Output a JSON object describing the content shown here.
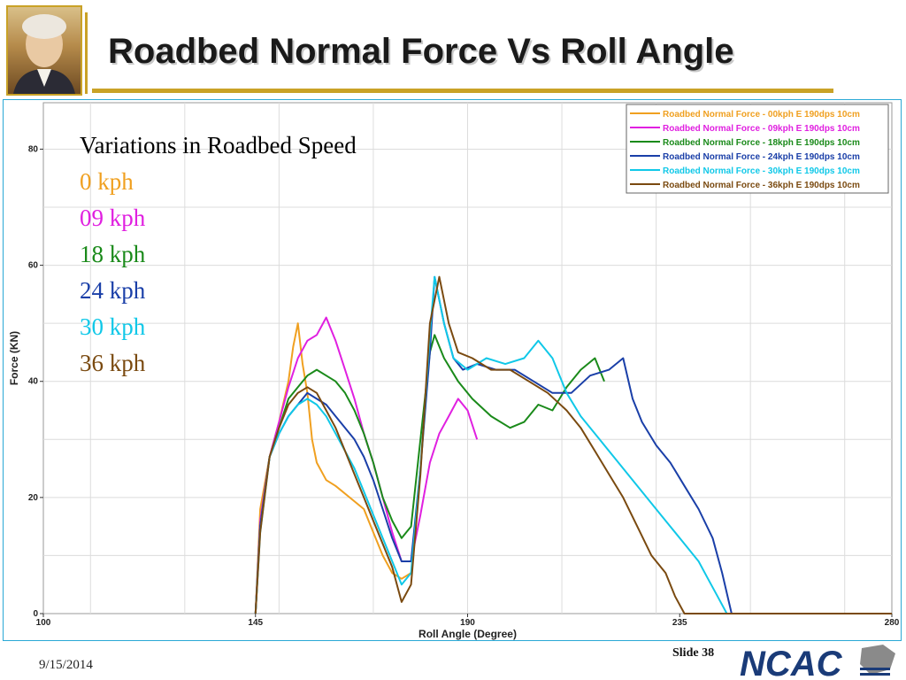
{
  "slide": {
    "title": "Roadbed Normal Force Vs Roll Angle",
    "footer_date": "9/15/2014",
    "slide_number": "Slide 38",
    "logo_text": "NCAC"
  },
  "text_block": {
    "heading": "Variations in Roadbed Speed",
    "items": [
      {
        "label": "0 kph",
        "color": "#f0a020"
      },
      {
        "label": "09 kph",
        "color": "#e020e0"
      },
      {
        "label": "18 kph",
        "color": "#1a8a1a"
      },
      {
        "label": "24 kph",
        "color": "#1a3fa8"
      },
      {
        "label": "30 kph",
        "color": "#10c8e8"
      },
      {
        "label": "36 kph",
        "color": "#7a4a10"
      }
    ]
  },
  "chart_data": {
    "type": "line",
    "title": "",
    "xlabel": "Roll Angle (Degree)",
    "ylabel": "Force (KN)",
    "xlim": [
      100,
      280
    ],
    "ylim": [
      0,
      88
    ],
    "xticks": [
      100,
      145,
      190,
      235,
      280
    ],
    "yticks": [
      0,
      20,
      40,
      60,
      80
    ],
    "grid": true,
    "legend_position": "top-right",
    "series": [
      {
        "name": "Roadbed Normal Force - 00kph E 190dps 10cm",
        "color": "#f0a020",
        "points": [
          [
            145,
            0
          ],
          [
            146,
            18
          ],
          [
            148,
            27
          ],
          [
            150,
            33
          ],
          [
            152,
            40
          ],
          [
            153,
            46
          ],
          [
            154,
            50
          ],
          [
            155,
            43
          ],
          [
            156,
            38
          ],
          [
            157,
            30
          ],
          [
            158,
            26
          ],
          [
            160,
            23
          ],
          [
            162,
            22
          ],
          [
            165,
            20
          ],
          [
            168,
            18
          ],
          [
            170,
            14
          ],
          [
            172,
            10
          ],
          [
            174,
            7
          ],
          [
            176,
            6
          ],
          [
            178,
            7
          ]
        ]
      },
      {
        "name": "Roadbed Normal Force - 09kph E 190dps 10cm",
        "color": "#e020e0",
        "points": [
          [
            145,
            0
          ],
          [
            146,
            16
          ],
          [
            148,
            27
          ],
          [
            150,
            33
          ],
          [
            152,
            39
          ],
          [
            154,
            44
          ],
          [
            156,
            47
          ],
          [
            158,
            48
          ],
          [
            160,
            51
          ],
          [
            162,
            47
          ],
          [
            164,
            42
          ],
          [
            166,
            37
          ],
          [
            168,
            31
          ],
          [
            170,
            26
          ],
          [
            172,
            20
          ],
          [
            174,
            14
          ],
          [
            176,
            9
          ],
          [
            178,
            9
          ],
          [
            180,
            17
          ],
          [
            182,
            26
          ],
          [
            184,
            31
          ],
          [
            186,
            34
          ],
          [
            188,
            37
          ],
          [
            190,
            35
          ],
          [
            192,
            30
          ]
        ]
      },
      {
        "name": "Roadbed Normal Force - 18kph E 190dps 10cm",
        "color": "#1a8a1a",
        "points": [
          [
            145,
            0
          ],
          [
            146,
            15
          ],
          [
            148,
            27
          ],
          [
            150,
            32
          ],
          [
            152,
            37
          ],
          [
            154,
            39
          ],
          [
            156,
            41
          ],
          [
            158,
            42
          ],
          [
            160,
            41
          ],
          [
            162,
            40
          ],
          [
            164,
            38
          ],
          [
            166,
            35
          ],
          [
            168,
            31
          ],
          [
            170,
            26
          ],
          [
            172,
            20
          ],
          [
            174,
            16
          ],
          [
            176,
            13
          ],
          [
            178,
            15
          ],
          [
            180,
            30
          ],
          [
            182,
            45
          ],
          [
            183,
            48
          ],
          [
            185,
            44
          ],
          [
            188,
            40
          ],
          [
            191,
            37
          ],
          [
            195,
            34
          ],
          [
            199,
            32
          ],
          [
            202,
            33
          ],
          [
            205,
            36
          ],
          [
            208,
            35
          ],
          [
            211,
            39
          ],
          [
            214,
            42
          ],
          [
            217,
            44
          ],
          [
            219,
            40
          ]
        ]
      },
      {
        "name": "Roadbed Normal Force - 24kph E 190dps 10cm",
        "color": "#1a3fa8",
        "points": [
          [
            145,
            0
          ],
          [
            146,
            15
          ],
          [
            148,
            27
          ],
          [
            150,
            31
          ],
          [
            152,
            34
          ],
          [
            154,
            36
          ],
          [
            156,
            38
          ],
          [
            158,
            37
          ],
          [
            160,
            36
          ],
          [
            162,
            34
          ],
          [
            164,
            32
          ],
          [
            166,
            30
          ],
          [
            168,
            27
          ],
          [
            170,
            23
          ],
          [
            172,
            18
          ],
          [
            174,
            13
          ],
          [
            176,
            9
          ],
          [
            178,
            9
          ],
          [
            180,
            25
          ],
          [
            182,
            45
          ],
          [
            183,
            58
          ],
          [
            185,
            50
          ],
          [
            187,
            44
          ],
          [
            189,
            42
          ],
          [
            192,
            43
          ],
          [
            196,
            42
          ],
          [
            200,
            42
          ],
          [
            204,
            40
          ],
          [
            208,
            38
          ],
          [
            212,
            38
          ],
          [
            216,
            41
          ],
          [
            220,
            42
          ],
          [
            223,
            44
          ],
          [
            225,
            37
          ],
          [
            227,
            33
          ],
          [
            230,
            29
          ],
          [
            233,
            26
          ],
          [
            236,
            22
          ],
          [
            239,
            18
          ],
          [
            242,
            13
          ],
          [
            244,
            7
          ],
          [
            246,
            0
          ]
        ]
      },
      {
        "name": "Roadbed Normal Force - 30kph E 190dps 10cm",
        "color": "#10c8e8",
        "points": [
          [
            145,
            0
          ],
          [
            146,
            14
          ],
          [
            148,
            27
          ],
          [
            150,
            31
          ],
          [
            152,
            34
          ],
          [
            154,
            36
          ],
          [
            156,
            37
          ],
          [
            158,
            36
          ],
          [
            160,
            34
          ],
          [
            162,
            31
          ],
          [
            164,
            28
          ],
          [
            166,
            25
          ],
          [
            168,
            21
          ],
          [
            170,
            17
          ],
          [
            172,
            13
          ],
          [
            174,
            9
          ],
          [
            176,
            5
          ],
          [
            178,
            7
          ],
          [
            180,
            25
          ],
          [
            182,
            48
          ],
          [
            183,
            58
          ],
          [
            185,
            50
          ],
          [
            187,
            44
          ],
          [
            190,
            42
          ],
          [
            194,
            44
          ],
          [
            198,
            43
          ],
          [
            202,
            44
          ],
          [
            205,
            47
          ],
          [
            208,
            44
          ],
          [
            211,
            38
          ],
          [
            214,
            34
          ],
          [
            218,
            30
          ],
          [
            222,
            26
          ],
          [
            226,
            22
          ],
          [
            230,
            18
          ],
          [
            233,
            15
          ],
          [
            236,
            12
          ],
          [
            239,
            9
          ],
          [
            241,
            6
          ],
          [
            243,
            3
          ],
          [
            245,
            0
          ]
        ]
      },
      {
        "name": "Roadbed Normal Force - 36kph E 190dps 10cm",
        "color": "#7a4a10",
        "points": [
          [
            145,
            0
          ],
          [
            146,
            14
          ],
          [
            148,
            27
          ],
          [
            150,
            32
          ],
          [
            152,
            36
          ],
          [
            154,
            38
          ],
          [
            156,
            39
          ],
          [
            158,
            38
          ],
          [
            160,
            35
          ],
          [
            162,
            32
          ],
          [
            164,
            28
          ],
          [
            166,
            24
          ],
          [
            168,
            20
          ],
          [
            170,
            16
          ],
          [
            172,
            12
          ],
          [
            174,
            8
          ],
          [
            176,
            2
          ],
          [
            178,
            5
          ],
          [
            180,
            24
          ],
          [
            182,
            50
          ],
          [
            184,
            58
          ],
          [
            186,
            50
          ],
          [
            188,
            45
          ],
          [
            191,
            44
          ],
          [
            195,
            42
          ],
          [
            199,
            42
          ],
          [
            203,
            40
          ],
          [
            207,
            38
          ],
          [
            211,
            35
          ],
          [
            214,
            32
          ],
          [
            217,
            28
          ],
          [
            220,
            24
          ],
          [
            223,
            20
          ],
          [
            226,
            15
          ],
          [
            229,
            10
          ],
          [
            232,
            7
          ],
          [
            234,
            3
          ],
          [
            236,
            0
          ],
          [
            280,
            0
          ]
        ]
      }
    ]
  }
}
